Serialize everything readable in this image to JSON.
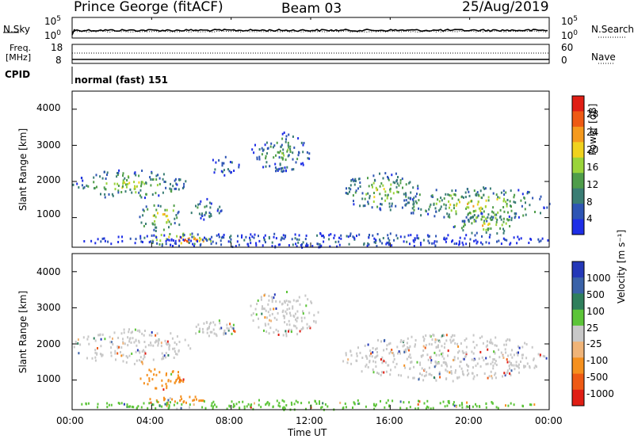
{
  "header": {
    "station": "Prince George (fitACF)",
    "beam": "Beam 03",
    "date": "25/Aug/2019"
  },
  "panels": {
    "nsky": {
      "left_label": "N.Sky",
      "right_label": "N.Search",
      "tick_top": "10^5",
      "tick_bottom": "10^0"
    },
    "freq": {
      "left_label_line1": "Freq.",
      "left_label_line2": "[MHz]",
      "right_label": "Nave",
      "left_tick_top": "18",
      "left_tick_bottom": "8",
      "right_tick_top": "60",
      "right_tick_bottom": "0"
    },
    "cpid": {
      "label": "CPID",
      "text": "normal (fast) 151"
    }
  },
  "chart_data": [
    {
      "type": "heatmap",
      "name": "power",
      "ylabel": "Slant Range [km]",
      "colorbar_label": "Power [dB]",
      "ylim": [
        180,
        4500
      ],
      "y_ticks": [
        "1000",
        "2000",
        "3000",
        "4000"
      ],
      "colorbar_ticks": [
        "4",
        "8",
        "12",
        "16",
        "20",
        "24",
        "28"
      ],
      "colorscale": [
        "#1e2ee6",
        "#2e55b4",
        "#3a7d74",
        "#4f9d4a",
        "#9ad43a",
        "#f0d21e",
        "#f59a1e",
        "#ee5a14",
        "#e01e14"
      ],
      "regions": [
        {
          "t0": 0.0,
          "t1": 5.8,
          "r0": 1550,
          "r1": 2350,
          "level": 0.55
        },
        {
          "t0": 3.3,
          "t1": 5.6,
          "r0": 650,
          "r1": 1450,
          "level": 0.7
        },
        {
          "t0": 3.5,
          "t1": 7.5,
          "r0": 250,
          "r1": 600,
          "level": 0.95
        },
        {
          "t0": 5.8,
          "t1": 7.6,
          "r0": 950,
          "r1": 1550,
          "level": 0.35
        },
        {
          "t0": 6.8,
          "t1": 8.4,
          "r0": 2200,
          "r1": 2750,
          "level": 0.3
        },
        {
          "t0": 9.0,
          "t1": 12.0,
          "r0": 2300,
          "r1": 3400,
          "level": 0.4
        },
        {
          "t0": 13.6,
          "t1": 17.5,
          "r0": 1200,
          "r1": 2300,
          "level": 0.55
        },
        {
          "t0": 16.5,
          "t1": 24.0,
          "r0": 900,
          "r1": 1900,
          "level": 0.6
        },
        {
          "t0": 19.0,
          "t1": 22.5,
          "r0": 550,
          "r1": 1150,
          "level": 0.65
        },
        {
          "t0": 0.0,
          "t1": 24.0,
          "r0": 200,
          "r1": 600,
          "level": 0.2
        }
      ]
    },
    {
      "type": "heatmap",
      "name": "velocity",
      "ylabel": "Slant Range [km]",
      "colorbar_label": "Velocity [m s⁻¹]",
      "ylim": [
        180,
        4500
      ],
      "y_ticks": [
        "1000",
        "2000",
        "3000",
        "4000"
      ],
      "colorbar_ticks": [
        "1000",
        "500",
        "100",
        "25",
        "-25",
        "-100",
        "-500",
        "-1000"
      ],
      "colorscale": [
        "#2438b8",
        "#3a62a8",
        "#2f7f5c",
        "#5cc438",
        "#c8c8c8",
        "#f0b478",
        "#f5901e",
        "#ee5a14",
        "#e01e14"
      ],
      "regions": [
        {
          "t0": 0.0,
          "t1": 6.0,
          "r0": 1450,
          "r1": 2450,
          "cls": 4
        },
        {
          "t0": 3.3,
          "t1": 5.6,
          "r0": 750,
          "r1": 1400,
          "cls": 6
        },
        {
          "t0": 3.5,
          "t1": 6.8,
          "r0": 300,
          "r1": 600,
          "cls": 6
        },
        {
          "t0": 6.0,
          "t1": 8.4,
          "r0": 2200,
          "r1": 2700,
          "cls": 4
        },
        {
          "t0": 8.8,
          "t1": 12.5,
          "r0": 2250,
          "r1": 3500,
          "cls": 4
        },
        {
          "t0": 13.5,
          "t1": 24.0,
          "r0": 1000,
          "r1": 2300,
          "cls": 4
        },
        {
          "t0": 0.0,
          "t1": 24.0,
          "r0": 200,
          "r1": 480,
          "cls": 3
        }
      ]
    }
  ],
  "x_axis": {
    "label": "Time UT",
    "ticks": [
      "00:00",
      "04:00",
      "08:00",
      "12:00",
      "16:00",
      "20:00",
      "00:00"
    ]
  }
}
